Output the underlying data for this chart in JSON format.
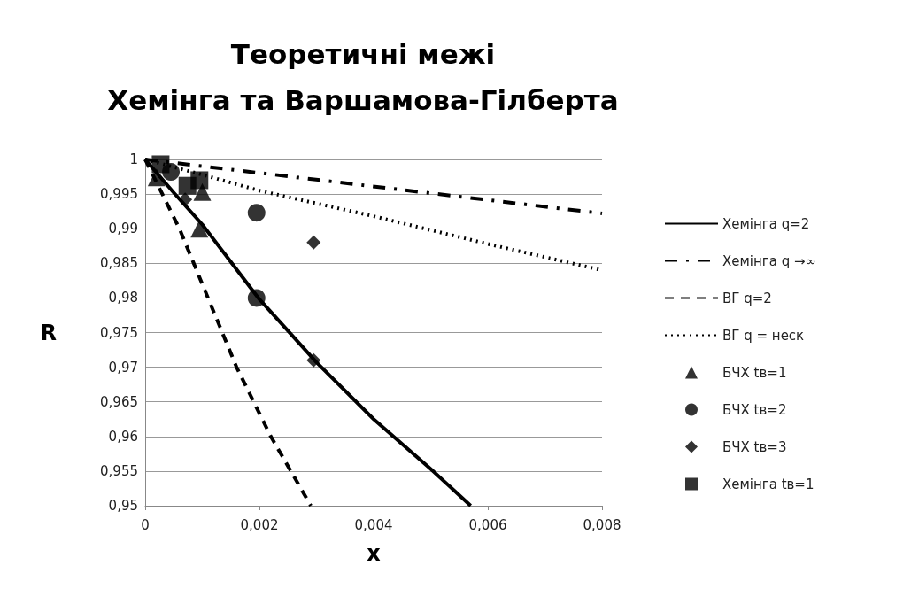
{
  "chart_data": {
    "type": "line",
    "title": "Теоретичні межі",
    "subtitle": "Хемінга та Варшамова-Гілберта",
    "xlabel": "x",
    "ylabel": "R",
    "series": [
      {
        "name": "Хемінга q=2",
        "color": "#000000",
        "line_style": "solid",
        "marker": "none",
        "x": [
          0,
          0.0005,
          0.001,
          0.002,
          0.003,
          0.004,
          0.005,
          0.0057
        ],
        "values": [
          1,
          0.9952,
          0.9906,
          0.9798,
          0.9707,
          0.9625,
          0.9553,
          0.95
        ]
      },
      {
        "name": "Хемінга q →∞",
        "color": "#000000",
        "line_style": "dashdot",
        "marker": "none",
        "x": [
          0,
          0.008
        ],
        "values": [
          1,
          0.9922
        ]
      },
      {
        "name": "ВГ q=2",
        "color": "#000000",
        "line_style": "dashed",
        "marker": "none",
        "x": [
          0,
          0.0006,
          0.0011,
          0.0016,
          0.0022,
          0.0029
        ],
        "values": [
          1,
          0.99,
          0.98,
          0.97,
          0.96,
          0.95
        ]
      },
      {
        "name": "ВГ q = неск",
        "color": "#000000",
        "line_style": "dotted",
        "marker": "none",
        "x": [
          0,
          0.001,
          0.002,
          0.004,
          0.006,
          0.008
        ],
        "values": [
          1,
          0.9978,
          0.9955,
          0.9918,
          0.9878,
          0.984
        ]
      },
      {
        "name": "БЧХ tв=1",
        "type": "scatter",
        "color": "#000000",
        "marker": "triangle",
        "x": [
          0.0002,
          0.001,
          0.00095
        ],
        "values": [
          0.9974,
          0.9953,
          0.99
        ]
      },
      {
        "name": "БЧХ tв=2",
        "type": "scatter",
        "color": "#000000",
        "marker": "circle",
        "x": [
          0.00045,
          0.00195,
          0.00195
        ],
        "values": [
          0.9982,
          0.9923,
          0.98
        ]
      },
      {
        "name": "БЧХ tв=3",
        "type": "scatter",
        "color": "#000000",
        "marker": "diamond",
        "x": [
          0.0007,
          0.00295,
          0.00295
        ],
        "values": [
          0.9942,
          0.988,
          0.971
        ]
      },
      {
        "name": "Хемінга tв=1",
        "type": "scatter",
        "color": "#000000",
        "marker": "square",
        "x": [
          0.00027,
          0.00074,
          0.00095
        ],
        "values": [
          0.9993,
          0.9962,
          0.997
        ]
      }
    ],
    "xlim": [
      0,
      0.008
    ],
    "ylim": [
      0.95,
      1
    ],
    "xticks": [
      0,
      {
        "value": 0.002,
        "label": "0,002"
      },
      {
        "value": 0.004,
        "label": "0,004"
      },
      {
        "value": 0.006,
        "label": "0,006"
      },
      {
        "value": 0.008,
        "label": "0,008"
      }
    ],
    "yticks": [
      {
        "value": 0.95,
        "label": "0,95"
      },
      {
        "value": 0.955,
        "label": "0,955"
      },
      {
        "value": 0.96,
        "label": "0,96"
      },
      {
        "value": 0.965,
        "label": "0,965"
      },
      {
        "value": 0.97,
        "label": "0,97"
      },
      {
        "value": 0.975,
        "label": "0,975"
      },
      {
        "value": 0.98,
        "label": "0,98"
      },
      {
        "value": 0.985,
        "label": "0,985"
      },
      {
        "value": 0.99,
        "label": "0,99"
      },
      {
        "value": 0.995,
        "label": "0,995"
      },
      1
    ],
    "grid": "y",
    "legend": "right"
  }
}
